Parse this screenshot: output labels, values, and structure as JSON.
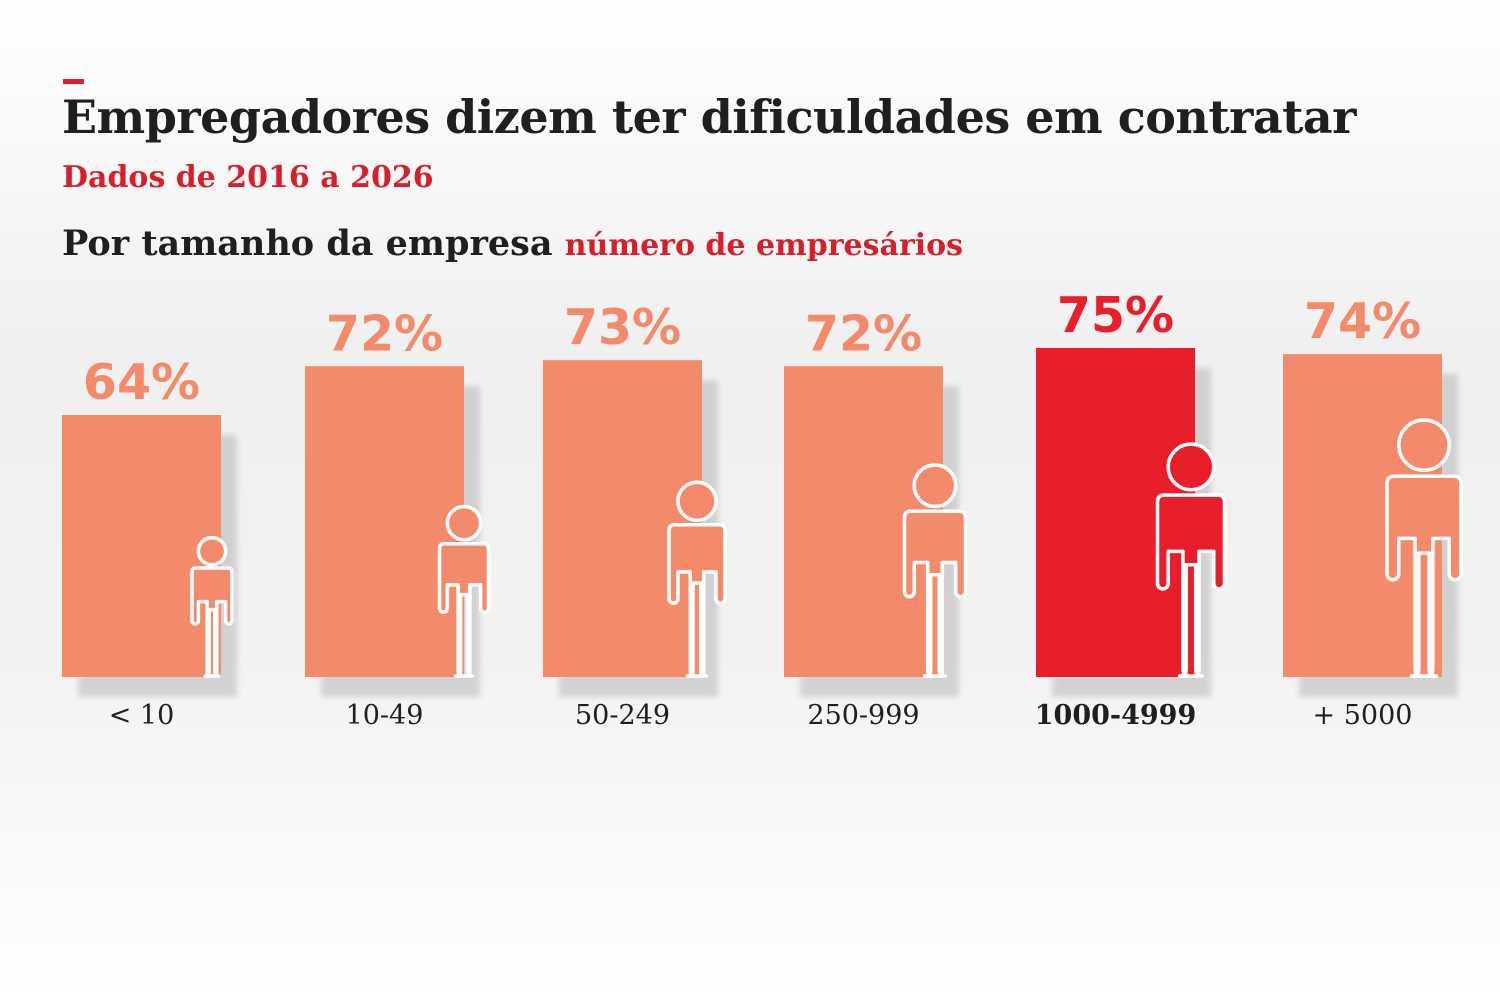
{
  "header": {
    "title": "Empregadores dizem ter dificuldades em contratar",
    "subtitle": "Dados de 2016 a 2026",
    "section_title": "Por tamanho da empresa",
    "section_unit": "número de empresários"
  },
  "colors": {
    "bar": "#f48a6c",
    "highlight": "#e81e2b",
    "text": "#1f1f1f",
    "accent_text": "#d71f2c"
  },
  "chart_data": {
    "type": "bar",
    "title": "Empregadores dizem ter dificuldades em contratar",
    "subtitle": "Dados de 2016 a 2026",
    "xlabel": "Por tamanho da empresa",
    "ylabel": "",
    "unit": "%",
    "categories": [
      "<10",
      "10-49",
      "50-249",
      "250-999",
      "1000-4999",
      "+5000"
    ],
    "values": [
      64,
      72,
      73,
      72,
      75,
      74
    ],
    "value_labels": [
      "64%",
      "72%",
      "73%",
      "72%",
      "75%",
      "74%"
    ],
    "category_labels": [
      "< 10",
      "10-49",
      "50-249",
      "250-999",
      "1000-4999",
      "+ 5000"
    ],
    "highlight_index": 4,
    "grid": false,
    "legend": "none"
  }
}
